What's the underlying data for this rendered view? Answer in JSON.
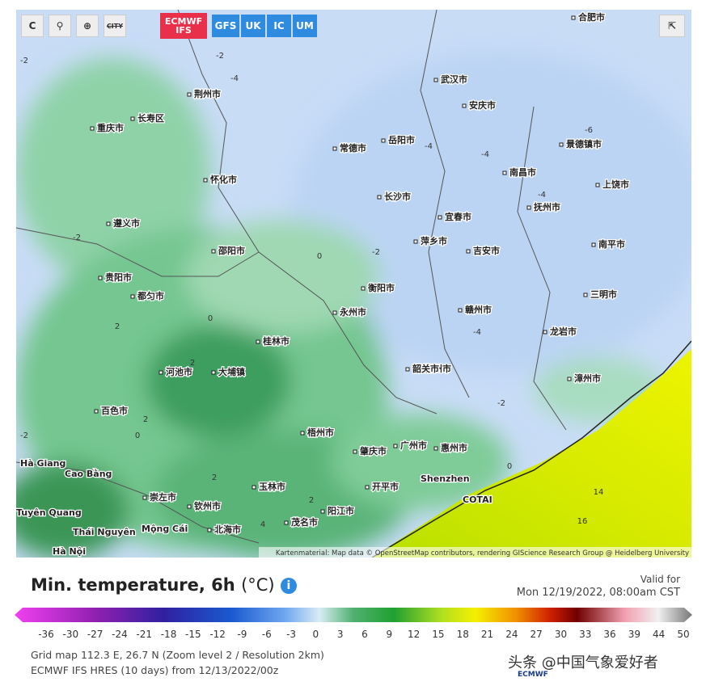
{
  "toolbar": {
    "city": "CITY",
    "ecmwf": "ECMWF",
    "ifs": "IFS",
    "models": [
      "GFS",
      "UK",
      "IC",
      "UM"
    ]
  },
  "map": {
    "cities": [
      "重庆市",
      "长寿区",
      "遵义市",
      "贵阳市",
      "都匀市",
      "河池市",
      "大埔镇",
      "桂林市",
      "百色市",
      "崇左市",
      "钦州市",
      "北海市",
      "玉林市",
      "梧州市",
      "肇庆市",
      "广州市",
      "惠州市",
      "长沙市",
      "岳阳市",
      "武汉市",
      "合肥市",
      "南昌市",
      "赣州市",
      "吉安市",
      "三明市",
      "漳州市",
      "上饶市",
      "抚州市",
      "宜春市",
      "萍乡市",
      "衡阳市",
      "郴州市",
      "韶关市",
      "荆州市",
      "常德市",
      "怀化市",
      "邵阳市",
      "永州市",
      "安庆市",
      "景德镇市",
      "南平市",
      "龙岩市",
      "阳江市",
      "茂名市",
      "开平市"
    ],
    "places": [
      "Shenzhen",
      "COTAI",
      "Cao Bằng",
      "Hà Giang",
      "Tuyên Quang",
      "Thái Nguyên",
      "Mộng Cái",
      "Hà Nội"
    ],
    "contours": [
      "-2",
      "-2",
      "-4",
      "-4",
      "-4",
      "-2",
      "0",
      "-2",
      "0",
      "2",
      "2",
      "0",
      "2",
      "-2",
      "-4",
      "-6",
      "-4",
      "2",
      "0",
      "14",
      "16",
      "-2",
      "2",
      "4"
    ],
    "attribution": "Kartenmaterial: Map data © OpenStreetMap contributors, rendering GIScience Research Group @ Heidelberg University"
  },
  "title": "Min. temperature, 6h",
  "unit": "(°C)",
  "valid_label": "Valid for",
  "valid_time": "Mon 12/19/2022, 08:00am CST",
  "legend_ticks": [
    -36,
    -30,
    -27,
    -24,
    -21,
    -18,
    -15,
    -12,
    -9,
    -6,
    -3,
    0,
    3,
    6,
    9,
    12,
    15,
    18,
    21,
    24,
    27,
    30,
    33,
    36,
    39,
    44,
    50
  ],
  "grid_info": "Grid map 112.3 E, 26.7 N (Zoom level 2 / Resolution 2km)",
  "model_info": "ECMWF IFS HRES (10 days) from 12/13/2022/00z",
  "watermark": "头条 @中国气象爱好者",
  "logo": "ECMWF"
}
